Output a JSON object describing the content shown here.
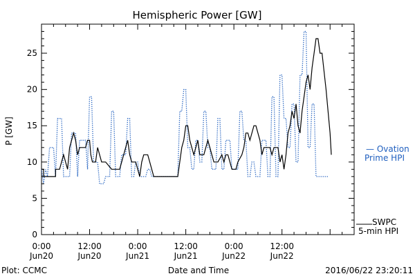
{
  "chart_data": {
    "type": "line",
    "title": "Hemispheric Power [GW]",
    "ylabel": "P [GW]",
    "xlabel": "Date and Time",
    "ylim": [
      0,
      29
    ],
    "xlim": [
      0,
      78
    ],
    "x_unit": "hours since 2016-06-20 00:00",
    "grid": false,
    "yticks": [
      0,
      5,
      10,
      15,
      20,
      25
    ],
    "xticks": [
      {
        "x": 0,
        "top": "0:00",
        "bottom": "Jun20"
      },
      {
        "x": 12,
        "top": "12:00",
        "bottom": "Jun20"
      },
      {
        "x": 24,
        "top": "0:00",
        "bottom": "Jun21"
      },
      {
        "x": 36,
        "top": "12:00",
        "bottom": "Jun21"
      },
      {
        "x": 48,
        "top": "0:00",
        "bottom": "Jun22"
      },
      {
        "x": 60,
        "top": "12:00",
        "bottom": "Jun22"
      }
    ],
    "series": [
      {
        "name": "SWPC 5-min HPI",
        "legend_lines": [
          "SWPC",
          "5-min HPI"
        ],
        "color": "#000000",
        "style": "solid",
        "points": [
          [
            0,
            9
          ],
          [
            0.5,
            9
          ],
          [
            0.5,
            8
          ],
          [
            3.5,
            8
          ],
          [
            3.5,
            9
          ],
          [
            4.5,
            9
          ],
          [
            5,
            10
          ],
          [
            5.5,
            11
          ],
          [
            6,
            10
          ],
          [
            6.5,
            9
          ],
          [
            7,
            12
          ],
          [
            7.5,
            13
          ],
          [
            8,
            14
          ],
          [
            8.5,
            13
          ],
          [
            9,
            11
          ],
          [
            9.5,
            12
          ],
          [
            10,
            12
          ],
          [
            11,
            12
          ],
          [
            11.5,
            13
          ],
          [
            12,
            13
          ],
          [
            12.3,
            11
          ],
          [
            12.7,
            10
          ],
          [
            13.5,
            10
          ],
          [
            14,
            12
          ],
          [
            14.5,
            11
          ],
          [
            15,
            10
          ],
          [
            16,
            10
          ],
          [
            17.5,
            9
          ],
          [
            19.5,
            9
          ],
          [
            20,
            10
          ],
          [
            21,
            12
          ],
          [
            21.5,
            13
          ],
          [
            22,
            11
          ],
          [
            22.5,
            10
          ],
          [
            23.5,
            10
          ],
          [
            24,
            9
          ],
          [
            24.5,
            8
          ],
          [
            25,
            10
          ],
          [
            25.5,
            11
          ],
          [
            26.5,
            11
          ],
          [
            27,
            10
          ],
          [
            28,
            8
          ],
          [
            34,
            8
          ],
          [
            34.5,
            10
          ],
          [
            35,
            12
          ],
          [
            35.5,
            13
          ],
          [
            36,
            15
          ],
          [
            36.5,
            15
          ],
          [
            37,
            13
          ],
          [
            37.5,
            12
          ],
          [
            38,
            11
          ],
          [
            38.5,
            12
          ],
          [
            39,
            13
          ],
          [
            39.5,
            11
          ],
          [
            40,
            11
          ],
          [
            40.5,
            11
          ],
          [
            41.5,
            13
          ],
          [
            42,
            12
          ],
          [
            42.5,
            11
          ],
          [
            43,
            10
          ],
          [
            44,
            10
          ],
          [
            45,
            11
          ],
          [
            45.5,
            10
          ],
          [
            46,
            11
          ],
          [
            46.5,
            11
          ],
          [
            47.5,
            9
          ],
          [
            48.5,
            9
          ],
          [
            49,
            10
          ],
          [
            50,
            11
          ],
          [
            50.5,
            12
          ],
          [
            51,
            14
          ],
          [
            51.5,
            14
          ],
          [
            52,
            13
          ],
          [
            53,
            15
          ],
          [
            53.5,
            15
          ],
          [
            54,
            14
          ],
          [
            54.5,
            13
          ],
          [
            55,
            11
          ],
          [
            55.5,
            12
          ],
          [
            57,
            12
          ],
          [
            57.5,
            11
          ],
          [
            58,
            12
          ],
          [
            59,
            12
          ],
          [
            59.5,
            10
          ],
          [
            60,
            11
          ],
          [
            60.5,
            9
          ],
          [
            61,
            11
          ],
          [
            61.5,
            14
          ],
          [
            62,
            15
          ],
          [
            62.5,
            17
          ],
          [
            63,
            16
          ],
          [
            63.5,
            18
          ],
          [
            64,
            15
          ],
          [
            64.5,
            14
          ],
          [
            65,
            17
          ],
          [
            65.5,
            19
          ],
          [
            66,
            21
          ],
          [
            66.5,
            22
          ],
          [
            67,
            20
          ],
          [
            67.5,
            23
          ],
          [
            68,
            25
          ],
          [
            68.5,
            27
          ],
          [
            69,
            27
          ],
          [
            69.5,
            25
          ],
          [
            70,
            25
          ],
          [
            71,
            20
          ],
          [
            72,
            14
          ],
          [
            72.3,
            11
          ]
        ]
      },
      {
        "name": "Ovation Prime HPI",
        "legend_lines": [
          "— Ovation",
          "Prime HPI"
        ],
        "color": "#1f5fbf",
        "style": "dotted",
        "points": [
          [
            0,
            9
          ],
          [
            0.5,
            7
          ],
          [
            1,
            9
          ],
          [
            1.5,
            8
          ],
          [
            2,
            12
          ],
          [
            3,
            12
          ],
          [
            3.5,
            8
          ],
          [
            4,
            16
          ],
          [
            5,
            16
          ],
          [
            5.5,
            8
          ],
          [
            7,
            8
          ],
          [
            7.5,
            14
          ],
          [
            8.5,
            14
          ],
          [
            9,
            8
          ],
          [
            9.5,
            13
          ],
          [
            11,
            13
          ],
          [
            11.5,
            9
          ],
          [
            12,
            19
          ],
          [
            12.5,
            19
          ],
          [
            13,
            10
          ],
          [
            14,
            10
          ],
          [
            14.5,
            7
          ],
          [
            15.5,
            7
          ],
          [
            16,
            8
          ],
          [
            17,
            8
          ],
          [
            17.5,
            17
          ],
          [
            18,
            17
          ],
          [
            18.5,
            8
          ],
          [
            19.5,
            8
          ],
          [
            20,
            11
          ],
          [
            21,
            11
          ],
          [
            21.5,
            16
          ],
          [
            22,
            16
          ],
          [
            22.5,
            8
          ],
          [
            23,
            8
          ],
          [
            23.5,
            10
          ],
          [
            24,
            10
          ],
          [
            24.5,
            8
          ],
          [
            26,
            8
          ],
          [
            26.5,
            9
          ],
          [
            27,
            9
          ],
          [
            27.5,
            8
          ],
          [
            34,
            8
          ],
          [
            34.5,
            17
          ],
          [
            35,
            17
          ],
          [
            35.5,
            20
          ],
          [
            36,
            20
          ],
          [
            36.5,
            12
          ],
          [
            37,
            12
          ],
          [
            37.5,
            9
          ],
          [
            38,
            9
          ],
          [
            38.5,
            13
          ],
          [
            39,
            13
          ],
          [
            39.5,
            10
          ],
          [
            40,
            10
          ],
          [
            40.5,
            17
          ],
          [
            41,
            17
          ],
          [
            41.5,
            12
          ],
          [
            42,
            12
          ],
          [
            42.5,
            9
          ],
          [
            43.5,
            9
          ],
          [
            44,
            16
          ],
          [
            44.5,
            16
          ],
          [
            45,
            9
          ],
          [
            45.5,
            9
          ],
          [
            46,
            13
          ],
          [
            47,
            13
          ],
          [
            47.5,
            9
          ],
          [
            49,
            9
          ],
          [
            49.5,
            17
          ],
          [
            50,
            17
          ],
          [
            50.5,
            13
          ],
          [
            51,
            13
          ],
          [
            51.5,
            8
          ],
          [
            52,
            8
          ],
          [
            52.5,
            10
          ],
          [
            53,
            10
          ],
          [
            53.5,
            8
          ],
          [
            54.5,
            8
          ],
          [
            55,
            13
          ],
          [
            56,
            13
          ],
          [
            56.5,
            8
          ],
          [
            57,
            8
          ],
          [
            57.5,
            19
          ],
          [
            58,
            19
          ],
          [
            58.5,
            8
          ],
          [
            59,
            8
          ],
          [
            59.5,
            22
          ],
          [
            60,
            22
          ],
          [
            60.5,
            16
          ],
          [
            61,
            16
          ],
          [
            61.5,
            12
          ],
          [
            62,
            12
          ],
          [
            62.5,
            18
          ],
          [
            63,
            18
          ],
          [
            63.5,
            10
          ],
          [
            64,
            10
          ],
          [
            64.5,
            22
          ],
          [
            65,
            22
          ],
          [
            65.5,
            28
          ],
          [
            66,
            28
          ],
          [
            66.5,
            12
          ],
          [
            67,
            12
          ],
          [
            67.5,
            18
          ],
          [
            68,
            18
          ],
          [
            68.5,
            8
          ],
          [
            71.5,
            8
          ]
        ]
      }
    ]
  },
  "footer": {
    "left": "Plot: CCMC",
    "center": "Date and Time",
    "right": "2016/06/22 23:20:11"
  }
}
